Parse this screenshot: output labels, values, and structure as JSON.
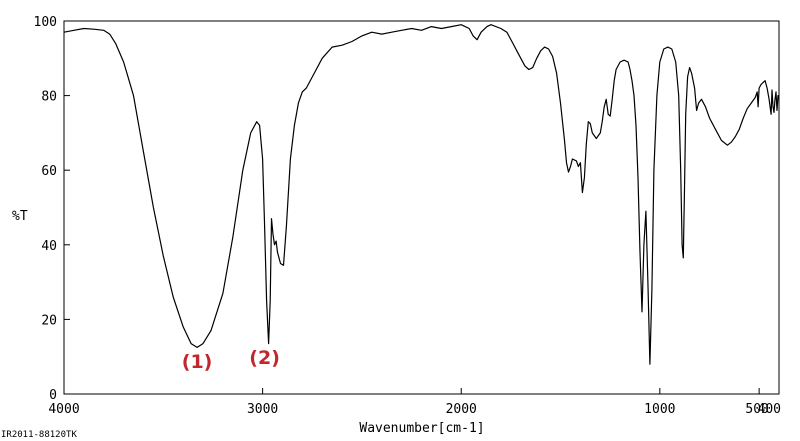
{
  "chart_data": {
    "type": "line",
    "xlabel": "Wavenumber[cm-1]",
    "ylabel": "%T",
    "xlim": [
      4000,
      400
    ],
    "ylim": [
      0,
      100
    ],
    "x_reversed": true,
    "x_ticks": [
      4000,
      3000,
      2000,
      1000,
      500,
      400
    ],
    "x_tick_labels": [
      "4000",
      "3000",
      "2000",
      "1000",
      "500",
      "400"
    ],
    "y_ticks": [
      0,
      20,
      40,
      60,
      80,
      100
    ],
    "y_tick_labels": [
      "0",
      "20",
      "40",
      "60",
      "80",
      "100"
    ],
    "grid": false,
    "line_color": "#000000",
    "annotation_color": "#c0282d",
    "annotations": [
      {
        "text": "(1)",
        "x": 3330,
        "y": 7
      },
      {
        "text": "(2)",
        "x": 2990,
        "y": 8
      }
    ],
    "footer_text": "IR2011-88120TK",
    "series": [
      {
        "points": [
          [
            4000,
            97.0
          ],
          [
            3950,
            97.5
          ],
          [
            3900,
            98.0
          ],
          [
            3850,
            97.8
          ],
          [
            3800,
            97.5
          ],
          [
            3770,
            96.5
          ],
          [
            3740,
            94.0
          ],
          [
            3700,
            89.0
          ],
          [
            3650,
            80.0
          ],
          [
            3600,
            65.0
          ],
          [
            3550,
            50.0
          ],
          [
            3500,
            37.0
          ],
          [
            3450,
            26.0
          ],
          [
            3400,
            18.0
          ],
          [
            3360,
            13.5
          ],
          [
            3330,
            12.5
          ],
          [
            3300,
            13.5
          ],
          [
            3260,
            17.0
          ],
          [
            3200,
            27.0
          ],
          [
            3150,
            42.0
          ],
          [
            3100,
            60.0
          ],
          [
            3060,
            70.0
          ],
          [
            3030,
            73.0
          ],
          [
            3015,
            72.0
          ],
          [
            3000,
            63.0
          ],
          [
            2990,
            45.0
          ],
          [
            2980,
            25.0
          ],
          [
            2970,
            13.5
          ],
          [
            2962,
            25.0
          ],
          [
            2955,
            47.0
          ],
          [
            2948,
            43.0
          ],
          [
            2940,
            40.0
          ],
          [
            2932,
            41.0
          ],
          [
            2925,
            38.0
          ],
          [
            2910,
            35.0
          ],
          [
            2895,
            34.5
          ],
          [
            2880,
            45.0
          ],
          [
            2860,
            63.0
          ],
          [
            2840,
            72.0
          ],
          [
            2820,
            78.0
          ],
          [
            2800,
            81.0
          ],
          [
            2780,
            82.0
          ],
          [
            2750,
            85.0
          ],
          [
            2700,
            90.0
          ],
          [
            2650,
            93.0
          ],
          [
            2600,
            93.5
          ],
          [
            2550,
            94.5
          ],
          [
            2500,
            96.0
          ],
          [
            2450,
            97.0
          ],
          [
            2400,
            96.5
          ],
          [
            2350,
            97.0
          ],
          [
            2300,
            97.5
          ],
          [
            2250,
            98.0
          ],
          [
            2200,
            97.5
          ],
          [
            2150,
            98.5
          ],
          [
            2100,
            98.0
          ],
          [
            2050,
            98.5
          ],
          [
            2000,
            99.0
          ],
          [
            1960,
            98.0
          ],
          [
            1940,
            96.0
          ],
          [
            1920,
            95.0
          ],
          [
            1900,
            97.0
          ],
          [
            1870,
            98.5
          ],
          [
            1850,
            99.0
          ],
          [
            1800,
            98.0
          ],
          [
            1770,
            97.0
          ],
          [
            1740,
            94.0
          ],
          [
            1720,
            92.0
          ],
          [
            1700,
            90.0
          ],
          [
            1680,
            88.0
          ],
          [
            1660,
            87.0
          ],
          [
            1640,
            87.5
          ],
          [
            1620,
            90.0
          ],
          [
            1600,
            92.0
          ],
          [
            1580,
            93.0
          ],
          [
            1560,
            92.5
          ],
          [
            1540,
            90.5
          ],
          [
            1520,
            86.0
          ],
          [
            1500,
            78.0
          ],
          [
            1480,
            68.0
          ],
          [
            1470,
            62.0
          ],
          [
            1460,
            59.5
          ],
          [
            1450,
            61.0
          ],
          [
            1440,
            63.0
          ],
          [
            1420,
            62.5
          ],
          [
            1410,
            61.0
          ],
          [
            1400,
            62.0
          ],
          [
            1390,
            54.0
          ],
          [
            1380,
            58.0
          ],
          [
            1370,
            67.0
          ],
          [
            1360,
            73.0
          ],
          [
            1350,
            72.5
          ],
          [
            1340,
            70.0
          ],
          [
            1320,
            68.5
          ],
          [
            1300,
            70.0
          ],
          [
            1290,
            73.0
          ],
          [
            1280,
            77.0
          ],
          [
            1270,
            79.0
          ],
          [
            1260,
            75.0
          ],
          [
            1250,
            74.5
          ],
          [
            1240,
            79.0
          ],
          [
            1230,
            84.0
          ],
          [
            1220,
            87.0
          ],
          [
            1200,
            89.0
          ],
          [
            1180,
            89.5
          ],
          [
            1160,
            89.0
          ],
          [
            1150,
            87.0
          ],
          [
            1140,
            84.0
          ],
          [
            1130,
            80.0
          ],
          [
            1120,
            72.0
          ],
          [
            1110,
            58.0
          ],
          [
            1100,
            38.0
          ],
          [
            1090,
            22.0
          ],
          [
            1080,
            40.0
          ],
          [
            1070,
            49.0
          ],
          [
            1060,
            30.0
          ],
          [
            1050,
            8.0
          ],
          [
            1040,
            28.0
          ],
          [
            1030,
            60.0
          ],
          [
            1015,
            80.0
          ],
          [
            1000,
            89.0
          ],
          [
            980,
            92.5
          ],
          [
            960,
            93.0
          ],
          [
            940,
            92.5
          ],
          [
            920,
            89.0
          ],
          [
            905,
            80.0
          ],
          [
            895,
            60.0
          ],
          [
            888,
            40.0
          ],
          [
            882,
            36.5
          ],
          [
            876,
            55.0
          ],
          [
            870,
            75.0
          ],
          [
            860,
            85.0
          ],
          [
            850,
            87.5
          ],
          [
            840,
            86.0
          ],
          [
            825,
            82.0
          ],
          [
            815,
            76.0
          ],
          [
            805,
            78.0
          ],
          [
            790,
            79.0
          ],
          [
            770,
            77.0
          ],
          [
            750,
            74.0
          ],
          [
            720,
            71.0
          ],
          [
            690,
            68.0
          ],
          [
            660,
            66.7
          ],
          [
            640,
            67.5
          ],
          [
            620,
            69.0
          ],
          [
            600,
            71.0
          ],
          [
            580,
            74.0
          ],
          [
            560,
            76.5
          ],
          [
            540,
            78.0
          ],
          [
            520,
            79.5
          ],
          [
            510,
            81.0
          ],
          [
            505,
            77.0
          ],
          [
            500,
            82.0
          ],
          [
            490,
            83.0
          ],
          [
            480,
            83.5
          ],
          [
            470,
            84.0
          ],
          [
            460,
            82.0
          ],
          [
            450,
            79.0
          ],
          [
            440,
            75.0
          ],
          [
            435,
            81.5
          ],
          [
            430,
            77.0
          ],
          [
            425,
            75.5
          ],
          [
            420,
            79.0
          ],
          [
            415,
            81.0
          ],
          [
            410,
            76.0
          ],
          [
            405,
            80.0
          ],
          [
            400,
            79.0
          ]
        ]
      }
    ]
  }
}
